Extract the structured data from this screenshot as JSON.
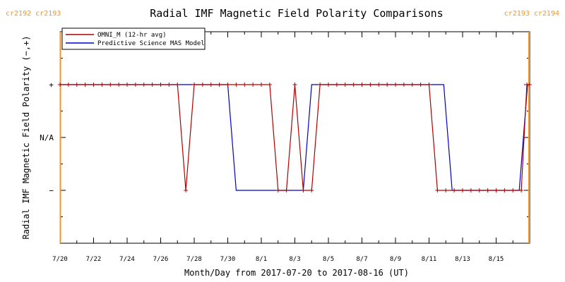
{
  "chart_data": {
    "type": "line",
    "title": "Radial IMF Magnetic Field Polarity Comparisons",
    "xlabel": "Month/Day from 2017-07-20 to 2017-08-16 (UT)",
    "ylabel": "Radial IMF Magnetic Field Polarity (−,+)",
    "x_tick_labels": [
      "7/20",
      "7/22",
      "7/24",
      "7/26",
      "7/28",
      "7/30",
      "8/1",
      "8/3",
      "8/5",
      "8/7",
      "8/9",
      "8/11",
      "8/13",
      "8/15"
    ],
    "xlim": [
      "2017-07-20T00:00",
      "2017-08-17T00:00"
    ],
    "y_categories": [
      "−",
      "N/A",
      "+"
    ],
    "ylim": [
      -2,
      2
    ],
    "carrington_markers": [
      {
        "label": "cr2192 cr2193",
        "x": "2017-07-20T00:30",
        "color": "#f7941d"
      },
      {
        "label": "cr2193 cr2194",
        "x": "2017-08-16T23:00",
        "color": "#f7941d"
      }
    ],
    "legend": {
      "position": "top-left"
    },
    "series": [
      {
        "name": "OMNI_M (12-hr avg)",
        "color": "#b00000",
        "markers": true,
        "points": [
          [
            "2017-07-20T00:00",
            1
          ],
          [
            "2017-07-20T12:00",
            1
          ],
          [
            "2017-07-21T00:00",
            1
          ],
          [
            "2017-07-21T12:00",
            1
          ],
          [
            "2017-07-22T00:00",
            1
          ],
          [
            "2017-07-22T12:00",
            1
          ],
          [
            "2017-07-23T00:00",
            1
          ],
          [
            "2017-07-23T12:00",
            1
          ],
          [
            "2017-07-24T00:00",
            1
          ],
          [
            "2017-07-24T12:00",
            1
          ],
          [
            "2017-07-25T00:00",
            1
          ],
          [
            "2017-07-25T12:00",
            1
          ],
          [
            "2017-07-26T00:00",
            1
          ],
          [
            "2017-07-26T12:00",
            1
          ],
          [
            "2017-07-27T00:00",
            1
          ],
          [
            "2017-07-27T12:00",
            -1
          ],
          [
            "2017-07-28T00:00",
            1
          ],
          [
            "2017-07-28T12:00",
            1
          ],
          [
            "2017-07-29T00:00",
            1
          ],
          [
            "2017-07-29T12:00",
            1
          ],
          [
            "2017-07-30T00:00",
            1
          ],
          [
            "2017-07-30T12:00",
            1
          ],
          [
            "2017-07-31T00:00",
            1
          ],
          [
            "2017-07-31T12:00",
            1
          ],
          [
            "2017-08-01T00:00",
            1
          ],
          [
            "2017-08-01T12:00",
            1
          ],
          [
            "2017-08-02T00:00",
            -1
          ],
          [
            "2017-08-02T12:00",
            -1
          ],
          [
            "2017-08-03T00:00",
            1
          ],
          [
            "2017-08-03T12:00",
            -1
          ],
          [
            "2017-08-04T00:00",
            -1
          ],
          [
            "2017-08-04T12:00",
            1
          ],
          [
            "2017-08-05T00:00",
            1
          ],
          [
            "2017-08-05T12:00",
            1
          ],
          [
            "2017-08-06T00:00",
            1
          ],
          [
            "2017-08-06T12:00",
            1
          ],
          [
            "2017-08-07T00:00",
            1
          ],
          [
            "2017-08-07T12:00",
            1
          ],
          [
            "2017-08-08T00:00",
            1
          ],
          [
            "2017-08-08T12:00",
            1
          ],
          [
            "2017-08-09T00:00",
            1
          ],
          [
            "2017-08-09T12:00",
            1
          ],
          [
            "2017-08-10T00:00",
            1
          ],
          [
            "2017-08-10T12:00",
            1
          ],
          [
            "2017-08-11T00:00",
            1
          ],
          [
            "2017-08-11T12:00",
            -1
          ],
          [
            "2017-08-12T00:00",
            -1
          ],
          [
            "2017-08-12T12:00",
            -1
          ],
          [
            "2017-08-13T00:00",
            -1
          ],
          [
            "2017-08-13T12:00",
            -1
          ],
          [
            "2017-08-14T00:00",
            -1
          ],
          [
            "2017-08-14T12:00",
            -1
          ],
          [
            "2017-08-15T00:00",
            -1
          ],
          [
            "2017-08-15T12:00",
            -1
          ],
          [
            "2017-08-16T00:00",
            -1
          ],
          [
            "2017-08-16T12:00",
            -1
          ],
          [
            "2017-08-16T20:00",
            1
          ],
          [
            "2017-08-17T00:00",
            1
          ]
        ]
      },
      {
        "name": "Predictive Science MAS Model",
        "color": "#0000c8",
        "markers": false,
        "points": [
          [
            "2017-07-20T00:00",
            1
          ],
          [
            "2017-07-30T00:00",
            1
          ],
          [
            "2017-07-30T12:00",
            -1
          ],
          [
            "2017-08-03T12:00",
            -1
          ],
          [
            "2017-08-04T00:00",
            1
          ],
          [
            "2017-08-11T00:00",
            1
          ],
          [
            "2017-08-11T21:00",
            1
          ],
          [
            "2017-08-12T09:00",
            -1
          ],
          [
            "2017-08-16T09:00",
            -1
          ],
          [
            "2017-08-16T21:00",
            1
          ],
          [
            "2017-08-17T00:00",
            1
          ]
        ]
      }
    ]
  }
}
